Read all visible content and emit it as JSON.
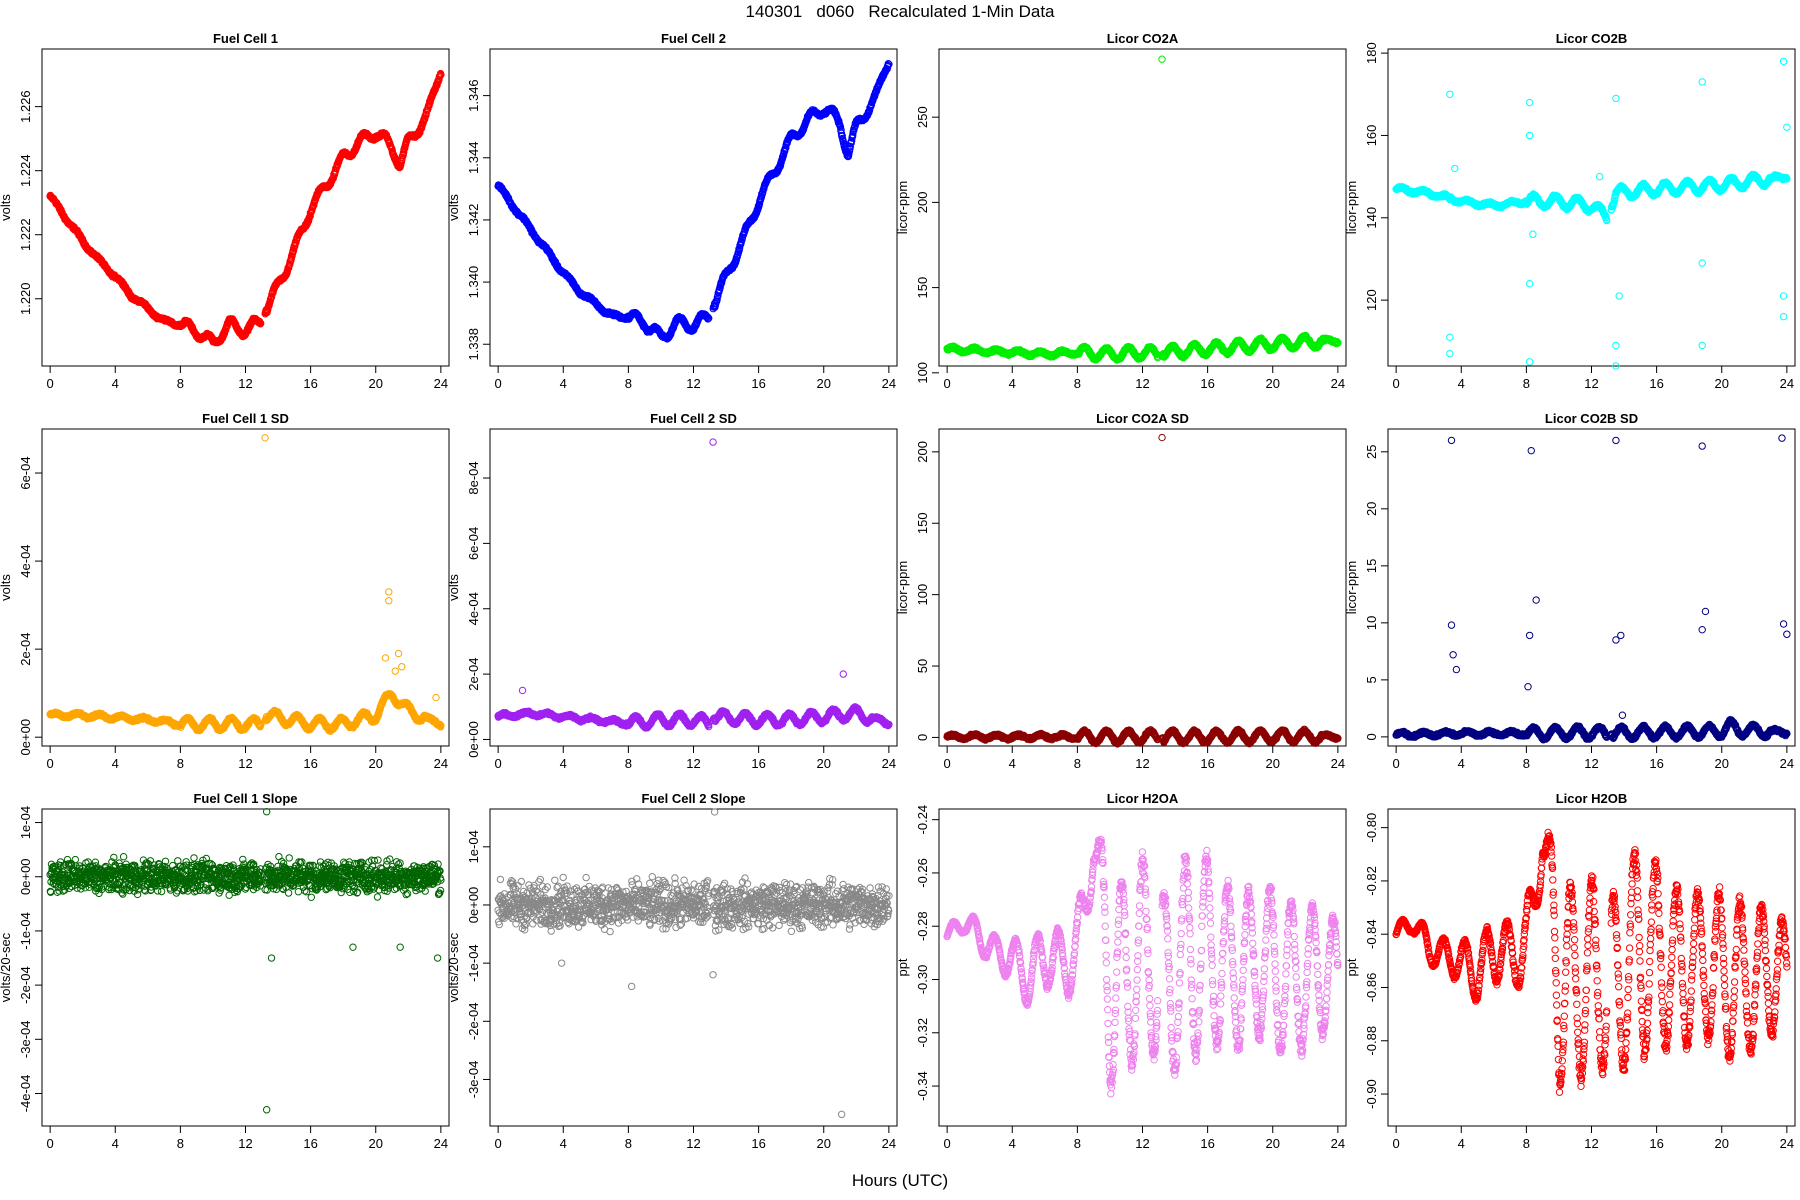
{
  "title": "140301   d060   Recalculated 1-Min Data",
  "xlabel": "Hours (UTC)",
  "chart_data": [
    {
      "id": "fc1",
      "type": "scatter",
      "title": "Fuel Cell 1",
      "ylabel": "volts",
      "color": "#ff0000",
      "xlim": [
        -0.5,
        24.5
      ],
      "ylim": [
        1.2179,
        1.2278
      ],
      "xticks": [
        0,
        4,
        8,
        12,
        16,
        20,
        24
      ],
      "xtick_labels": [
        "0",
        "4",
        "8",
        "12",
        "16",
        "20",
        "24"
      ],
      "yticks": [
        1.22,
        1.222,
        1.224,
        1.226
      ],
      "ytick_labels": [
        "1.220",
        "1.222",
        "1.224",
        "1.226"
      ],
      "x": [
        0,
        1,
        2,
        3,
        4,
        5,
        6,
        7,
        8,
        9,
        10,
        11,
        12,
        12.9,
        13.2,
        14,
        15,
        16,
        17,
        18,
        19,
        20,
        20.5,
        21,
        21.5,
        22,
        23,
        24
      ],
      "y": [
        1.2232,
        1.2225,
        1.2218,
        1.2212,
        1.2207,
        1.2201,
        1.2197,
        1.2193,
        1.2192,
        1.219,
        1.2186,
        1.2192,
        1.219,
        1.2193,
        1.2196,
        1.2204,
        1.2215,
        1.2228,
        1.2236,
        1.2244,
        1.2249,
        1.2252,
        1.225,
        1.2247,
        1.2242,
        1.2249,
        1.2256,
        1.2271
      ]
    },
    {
      "id": "fc2",
      "type": "scatter",
      "title": "Fuel Cell 2",
      "ylabel": "volts",
      "color": "#0000ff",
      "xlim": [
        -0.5,
        24.5
      ],
      "ylim": [
        1.3373,
        1.3475
      ],
      "xticks": [
        0,
        4,
        8,
        12,
        16,
        20,
        24
      ],
      "xtick_labels": [
        "0",
        "4",
        "8",
        "12",
        "16",
        "20",
        "24"
      ],
      "yticks": [
        1.338,
        1.34,
        1.342,
        1.344,
        1.346
      ],
      "ytick_labels": [
        "1.338",
        "1.340",
        "1.342",
        "1.344",
        "1.346"
      ],
      "x": [
        0,
        1,
        2,
        3,
        4,
        5,
        6,
        7,
        8,
        9,
        10,
        11,
        12,
        12.9,
        13.2,
        14,
        15,
        16,
        17,
        18,
        19,
        20,
        20.5,
        21,
        21.5,
        22,
        23,
        24
      ],
      "y": [
        1.3431,
        1.3424,
        1.3417,
        1.341,
        1.3403,
        1.3397,
        1.3393,
        1.3389,
        1.3389,
        1.3387,
        1.3382,
        1.3387,
        1.3386,
        1.3389,
        1.3392,
        1.3402,
        1.3413,
        1.3426,
        1.3436,
        1.3446,
        1.3452,
        1.3456,
        1.3454,
        1.3451,
        1.3441,
        1.345,
        1.3458,
        1.3471
      ]
    },
    {
      "id": "co2a",
      "type": "scatter",
      "title": "Licor CO2A",
      "ylabel": "licor-ppm",
      "color": "#00ee00",
      "xlim": [
        -0.5,
        24.5
      ],
      "ylim": [
        104,
        290
      ],
      "xticks": [
        0,
        4,
        8,
        12,
        16,
        20,
        24
      ],
      "xtick_labels": [
        "0",
        "4",
        "8",
        "12",
        "16",
        "20",
        "24"
      ],
      "yticks": [
        100,
        150,
        200,
        250
      ],
      "ytick_labels": [
        "100",
        "150",
        "200",
        "250"
      ],
      "x": [
        0,
        2,
        4,
        6,
        8,
        10,
        12,
        13,
        13.3,
        16,
        20,
        24
      ],
      "y": [
        114,
        113,
        112,
        111,
        112,
        111,
        112,
        111,
        112,
        114,
        117,
        119
      ],
      "outliers": [
        [
          13.2,
          284
        ]
      ]
    },
    {
      "id": "co2b",
      "type": "scatter",
      "title": "Licor CO2B",
      "ylabel": "licor-ppm",
      "color": "#00ffff",
      "xlim": [
        -0.5,
        24.5
      ],
      "ylim": [
        104,
        181
      ],
      "xticks": [
        0,
        4,
        8,
        12,
        16,
        20,
        24
      ],
      "xtick_labels": [
        "0",
        "4",
        "8",
        "12",
        "16",
        "20",
        "24"
      ],
      "yticks": [
        120,
        140,
        160,
        180
      ],
      "ytick_labels": [
        "120",
        "140",
        "160",
        "180"
      ],
      "x": [
        0,
        2,
        4,
        6,
        8,
        10,
        12,
        13,
        13.5,
        16,
        20,
        24
      ],
      "y": [
        147,
        146,
        144,
        143,
        144,
        144,
        143,
        140,
        146,
        147,
        148,
        150
      ],
      "outliers": [
        [
          3.3,
          170
        ],
        [
          3.3,
          111
        ],
        [
          3.3,
          107
        ],
        [
          3.6,
          152
        ],
        [
          8.2,
          168
        ],
        [
          8.2,
          124
        ],
        [
          8.2,
          105
        ],
        [
          8.2,
          160
        ],
        [
          8.4,
          136
        ],
        [
          12.5,
          150
        ],
        [
          13.5,
          169
        ],
        [
          13.5,
          109
        ],
        [
          13.5,
          104
        ],
        [
          13.7,
          121
        ],
        [
          18.8,
          173
        ],
        [
          18.8,
          109
        ],
        [
          18.8,
          129
        ],
        [
          23.8,
          178
        ],
        [
          23.8,
          116
        ],
        [
          23.8,
          121
        ],
        [
          24,
          162
        ]
      ]
    },
    {
      "id": "fc1sd",
      "type": "scatter",
      "title": "Fuel Cell 1 SD",
      "ylabel": "volts",
      "color": "#ffa500",
      "xlim": [
        -0.5,
        24.5
      ],
      "ylim": [
        -2e-05,
        0.0007
      ],
      "xticks": [
        0,
        4,
        8,
        12,
        16,
        20,
        24
      ],
      "xtick_labels": [
        "0",
        "4",
        "8",
        "12",
        "16",
        "20",
        "24"
      ],
      "yticks": [
        0,
        0.0002,
        0.0004,
        0.0006
      ],
      "ytick_labels": [
        "0e+00",
        "2e-04",
        "4e-04",
        "6e-04"
      ],
      "x": [
        0,
        2,
        4,
        6,
        8,
        10,
        12,
        13,
        13.3,
        16,
        18,
        20,
        21,
        22,
        24
      ],
      "y": [
        5e-05,
        5e-05,
        4.5e-05,
        4e-05,
        3e-05,
        3e-05,
        3e-05,
        3e-05,
        5e-05,
        3e-05,
        3e-05,
        5e-05,
        0.0001,
        6e-05,
        3e-05
      ],
      "outliers": [
        [
          13.2,
          0.00068
        ],
        [
          20.8,
          0.00033
        ],
        [
          20.8,
          0.00031
        ],
        [
          20.6,
          0.00018
        ],
        [
          21.4,
          0.00019
        ],
        [
          21.6,
          0.00016
        ],
        [
          21.2,
          0.00015
        ],
        [
          23.7,
          9e-05
        ]
      ]
    },
    {
      "id": "fc2sd",
      "type": "scatter",
      "title": "Fuel Cell 2 SD",
      "ylabel": "volts",
      "color": "#a020f0",
      "xlim": [
        -0.5,
        24.5
      ],
      "ylim": [
        -2e-05,
        0.00095
      ],
      "xticks": [
        0,
        4,
        8,
        12,
        16,
        20,
        24
      ],
      "xtick_labels": [
        "0",
        "4",
        "8",
        "12",
        "16",
        "20",
        "24"
      ],
      "yticks": [
        0,
        0.0002,
        0.0004,
        0.0006,
        0.0008
      ],
      "ytick_labels": [
        "0e+00",
        "2e-04",
        "4e-04",
        "6e-04",
        "8e-04"
      ],
      "x": [
        0,
        2,
        4,
        6,
        8,
        10,
        12,
        13,
        13.3,
        16,
        18,
        20,
        22,
        24
      ],
      "y": [
        7e-05,
        8e-05,
        7e-05,
        6e-05,
        5e-05,
        6e-05,
        6e-05,
        5e-05,
        7e-05,
        6e-05,
        6e-05,
        7e-05,
        8e-05,
        5e-05
      ],
      "outliers": [
        [
          13.2,
          0.00091
        ],
        [
          21.2,
          0.0002
        ],
        [
          1.5,
          0.00015
        ]
      ]
    },
    {
      "id": "co2asd",
      "type": "scatter",
      "title": "Licor CO2A SD",
      "ylabel": "licor-ppm",
      "color": "#8b0000",
      "xlim": [
        -0.5,
        24.5
      ],
      "ylim": [
        -6,
        216
      ],
      "xticks": [
        0,
        4,
        8,
        12,
        16,
        20,
        24
      ],
      "xtick_labels": [
        "0",
        "4",
        "8",
        "12",
        "16",
        "20",
        "24"
      ],
      "yticks": [
        0,
        50,
        100,
        150,
        200
      ],
      "ytick_labels": [
        "0",
        "50",
        "100",
        "150",
        "200"
      ],
      "x": [
        0,
        4,
        8,
        12,
        13,
        13.3,
        16,
        20,
        24
      ],
      "y": [
        0.5,
        0.5,
        0.5,
        0.5,
        0.5,
        0.5,
        0.5,
        0.8,
        0.5
      ],
      "outliers": [
        [
          13.2,
          210
        ]
      ]
    },
    {
      "id": "co2bsd",
      "type": "scatter",
      "title": "Licor CO2B SD",
      "ylabel": "licor-ppm",
      "color": "#000080",
      "xlim": [
        -0.5,
        24.5
      ],
      "ylim": [
        -0.8,
        27
      ],
      "xticks": [
        0,
        4,
        8,
        12,
        16,
        20,
        24
      ],
      "xtick_labels": [
        "0",
        "4",
        "8",
        "12",
        "16",
        "20",
        "24"
      ],
      "yticks": [
        0,
        5,
        10,
        15,
        20,
        25
      ],
      "ytick_labels": [
        "0",
        "5",
        "10",
        "15",
        "20",
        "25"
      ],
      "x": [
        0,
        4,
        8,
        12,
        12.9,
        13.2,
        16,
        20,
        20.5,
        21,
        24
      ],
      "y": [
        0.2,
        0.3,
        0.3,
        0.4,
        0.3,
        0.3,
        0.4,
        0.5,
        1.0,
        0.6,
        0.4
      ],
      "outliers": [
        [
          3.4,
          26
        ],
        [
          3.4,
          9.8
        ],
        [
          3.5,
          7.2
        ],
        [
          3.7,
          5.9
        ],
        [
          8.3,
          25.1
        ],
        [
          8.6,
          12
        ],
        [
          8.2,
          8.9
        ],
        [
          8.1,
          4.4
        ],
        [
          13.5,
          26
        ],
        [
          13.5,
          8.5
        ],
        [
          13.8,
          8.9
        ],
        [
          13.9,
          1.9
        ],
        [
          18.8,
          25.5
        ],
        [
          18.8,
          9.4
        ],
        [
          19,
          11
        ],
        [
          23.7,
          26.2
        ],
        [
          23.8,
          9.9
        ],
        [
          24,
          9
        ]
      ]
    },
    {
      "id": "fc1slope",
      "type": "scatter",
      "title": "Fuel Cell 1 Slope",
      "ylabel": "volts/20-sec",
      "color": "#006400",
      "xlim": [
        -0.5,
        24.5
      ],
      "ylim": [
        -0.00046,
        0.000125
      ],
      "xticks": [
        0,
        4,
        8,
        12,
        16,
        20,
        24
      ],
      "xtick_labels": [
        "0",
        "4",
        "8",
        "12",
        "16",
        "20",
        "24"
      ],
      "yticks": [
        -0.0004,
        -0.0003,
        -0.0002,
        -0.0001,
        0,
        0.0001
      ],
      "ytick_labels": [
        "-4e-04",
        "-3e-04",
        "-2e-04",
        "-1e-04",
        "0e+00",
        "1e-04"
      ],
      "x": [
        0,
        2,
        4,
        6,
        8,
        10,
        12,
        13,
        13.3,
        16,
        18,
        20,
        22,
        24
      ],
      "y": [
        0,
        0,
        0,
        0,
        0,
        0,
        0,
        0,
        0,
        0,
        0,
        0,
        0,
        0
      ],
      "spread": 3e-05,
      "outliers": [
        [
          13.3,
          0.00012
        ],
        [
          13.3,
          -0.00043
        ],
        [
          13.6,
          -0.00015
        ],
        [
          18.6,
          -0.00013
        ],
        [
          21.5,
          -0.00013
        ],
        [
          23.8,
          -0.00015
        ]
      ]
    },
    {
      "id": "fc2slope",
      "type": "scatter",
      "title": "Fuel Cell 2 Slope",
      "ylabel": "volts/20-sec",
      "color": "#888888",
      "xlim": [
        -0.5,
        24.5
      ],
      "ylim": [
        -0.00038,
        0.000165
      ],
      "xticks": [
        0,
        4,
        8,
        12,
        16,
        20,
        24
      ],
      "xtick_labels": [
        "0",
        "4",
        "8",
        "12",
        "16",
        "20",
        "24"
      ],
      "yticks": [
        -0.0003,
        -0.0002,
        -0.0001,
        0,
        0.0001
      ],
      "ytick_labels": [
        "-3e-04",
        "-2e-04",
        "-1e-04",
        "0e+00",
        "1e-04"
      ],
      "x": [
        0,
        2,
        4,
        6,
        8,
        10,
        12,
        13,
        13.3,
        16,
        18,
        20,
        22,
        24
      ],
      "y": [
        0,
        0,
        0,
        0,
        0,
        0,
        0,
        0,
        0,
        0,
        0,
        0,
        0,
        0
      ],
      "spread": 4e-05,
      "outliers": [
        [
          13.3,
          0.00016
        ],
        [
          21.1,
          -0.00036
        ],
        [
          13.2,
          -0.00012
        ],
        [
          8.2,
          -0.00014
        ],
        [
          3.9,
          -0.0001
        ]
      ]
    },
    {
      "id": "h2oa",
      "type": "scatter",
      "title": "Licor H2OA",
      "ylabel": "ppt",
      "color": "#ee82ee",
      "xlim": [
        -0.5,
        24.5
      ],
      "ylim": [
        -0.355,
        -0.236
      ],
      "xticks": [
        0,
        4,
        8,
        12,
        16,
        20,
        24
      ],
      "xtick_labels": [
        "0",
        "4",
        "8",
        "12",
        "16",
        "20",
        "24"
      ],
      "yticks": [
        -0.34,
        -0.32,
        -0.3,
        -0.28,
        -0.26,
        -0.24
      ],
      "ytick_labels": [
        "-0.34",
        "-0.32",
        "-0.30",
        "-0.28",
        "-0.26",
        "-0.24"
      ],
      "x": [
        0,
        1,
        2,
        3,
        4,
        5,
        6,
        7,
        8,
        9,
        10,
        11,
        12,
        13,
        14,
        15,
        16,
        17,
        18,
        19,
        20,
        21,
        22,
        23,
        24
      ],
      "y": [
        -0.284,
        -0.278,
        -0.284,
        -0.29,
        -0.292,
        -0.3,
        -0.29,
        -0.294,
        -0.29,
        -0.25,
        -0.3,
        -0.3,
        -0.29,
        -0.3,
        -0.3,
        -0.29,
        -0.29,
        -0.295,
        -0.295,
        -0.295,
        -0.295,
        -0.3,
        -0.3,
        -0.295,
        -0.3
      ],
      "amp": [
        0.003,
        0.004,
        0.006,
        0.006,
        0.008,
        0.01,
        0.012,
        0.012,
        0.015,
        0.01,
        0.04,
        0.035,
        0.035,
        0.03,
        0.035,
        0.04,
        0.035,
        0.03,
        0.03,
        0.025,
        0.03,
        0.03,
        0.025,
        0.025,
        0.02
      ]
    },
    {
      "id": "h2ob",
      "type": "scatter",
      "title": "Licor H2OB",
      "ylabel": "ppt",
      "color": "#ff0000",
      "xlim": [
        -0.5,
        24.5
      ],
      "ylim": [
        -0.912,
        -0.793
      ],
      "xticks": [
        0,
        4,
        8,
        12,
        16,
        20,
        24
      ],
      "xtick_labels": [
        "0",
        "4",
        "8",
        "12",
        "16",
        "20",
        "24"
      ],
      "yticks": [
        -0.9,
        -0.88,
        -0.86,
        -0.84,
        -0.82,
        -0.8
      ],
      "ytick_labels": [
        "-0.90",
        "-0.88",
        "-0.86",
        "-0.84",
        "-0.82",
        "-0.80"
      ],
      "x": [
        0,
        1,
        2,
        3,
        4,
        5,
        6,
        7,
        8,
        9,
        10,
        11,
        12,
        13,
        14,
        15,
        16,
        17,
        18,
        19,
        20,
        21,
        22,
        23,
        24
      ],
      "y": [
        -0.84,
        -0.835,
        -0.845,
        -0.848,
        -0.85,
        -0.855,
        -0.845,
        -0.848,
        -0.845,
        -0.805,
        -0.855,
        -0.86,
        -0.855,
        -0.86,
        -0.855,
        -0.845,
        -0.848,
        -0.852,
        -0.852,
        -0.852,
        -0.855,
        -0.858,
        -0.858,
        -0.852,
        -0.858
      ],
      "amp": [
        0.003,
        0.004,
        0.006,
        0.006,
        0.008,
        0.01,
        0.012,
        0.012,
        0.015,
        0.01,
        0.04,
        0.035,
        0.035,
        0.03,
        0.035,
        0.04,
        0.035,
        0.03,
        0.03,
        0.025,
        0.03,
        0.03,
        0.025,
        0.025,
        0.02
      ]
    }
  ]
}
